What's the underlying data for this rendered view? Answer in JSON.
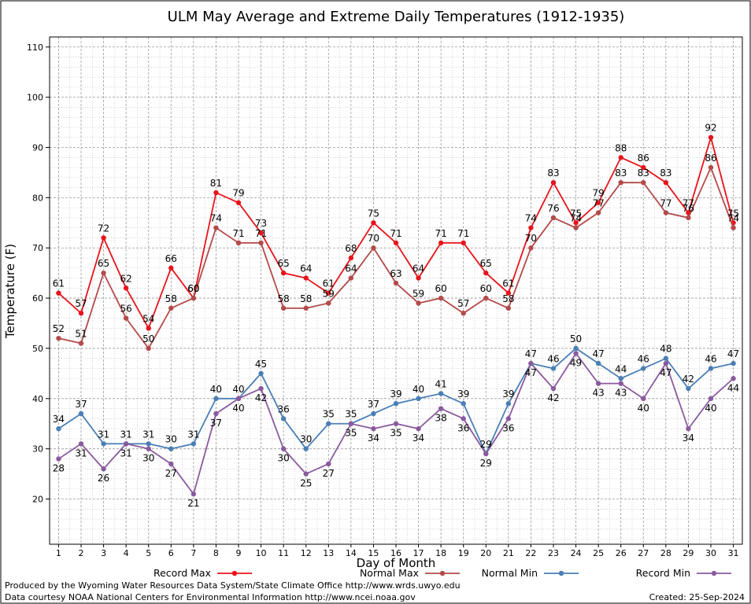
{
  "colors": {
    "record_max": "#e8141b",
    "normal_max": "#b44a4a",
    "normal_min": "#4a7fb5",
    "record_min": "#8a5a9e",
    "grid": "#b8b8b8"
  },
  "footer": {
    "produced_by": "Produced by the Wyoming Water Resources Data System/State Climate Office http://www.wrds.uwyo.edu",
    "data_courtesy": "Data courtesy NOAA National Centers for Environmental Information http://www.ncei.noaa.gov",
    "created": "Created: 25-Sep-2024"
  },
  "chart_data": {
    "type": "line",
    "title": "ULM May Average and Extreme Daily Temperatures (1912-1935)",
    "xlabel": "Day of Month",
    "ylabel": "Temperature (F)",
    "xlim": [
      0.6,
      31.4
    ],
    "ylim": [
      11,
      112
    ],
    "yticks": [
      20,
      30,
      40,
      50,
      60,
      70,
      80,
      90,
      100,
      110
    ],
    "x": [
      1,
      2,
      3,
      4,
      5,
      6,
      7,
      8,
      9,
      10,
      11,
      12,
      13,
      14,
      15,
      16,
      17,
      18,
      19,
      20,
      21,
      22,
      23,
      24,
      25,
      26,
      27,
      28,
      29,
      30,
      31
    ],
    "grid": true,
    "legend_position": "bottom",
    "series": [
      {
        "name": "Record Max",
        "color_key": "record_max",
        "label_pos": "above",
        "values": [
          61,
          57,
          72,
          62,
          54,
          66,
          60,
          81,
          79,
          73,
          65,
          64,
          61,
          68,
          75,
          71,
          64,
          71,
          71,
          65,
          61,
          74,
          83,
          75,
          79,
          88,
          86,
          83,
          77,
          92,
          75
        ]
      },
      {
        "name": "Normal Max",
        "color_key": "normal_max",
        "label_pos": "above",
        "values": [
          52,
          51,
          65,
          56,
          50,
          58,
          60,
          74,
          71,
          71,
          58,
          58,
          59,
          64,
          70,
          63,
          59,
          60,
          57,
          60,
          58,
          70,
          76,
          74,
          77,
          83,
          83,
          77,
          76,
          86,
          74
        ]
      },
      {
        "name": "Normal Min",
        "color_key": "normal_min",
        "label_pos": "above",
        "values": [
          34,
          37,
          31,
          31,
          31,
          30,
          31,
          40,
          40,
          45,
          36,
          30,
          35,
          35,
          37,
          39,
          40,
          41,
          39,
          29,
          39,
          47,
          46,
          50,
          47,
          44,
          46,
          48,
          42,
          46,
          47
        ]
      },
      {
        "name": "Record Min",
        "color_key": "record_min",
        "label_pos": "below",
        "values": [
          28,
          31,
          26,
          31,
          30,
          27,
          21,
          37,
          40,
          42,
          30,
          25,
          27,
          35,
          34,
          35,
          34,
          38,
          36,
          29,
          36,
          47,
          42,
          49,
          43,
          43,
          40,
          47,
          34,
          40,
          44
        ]
      }
    ]
  }
}
